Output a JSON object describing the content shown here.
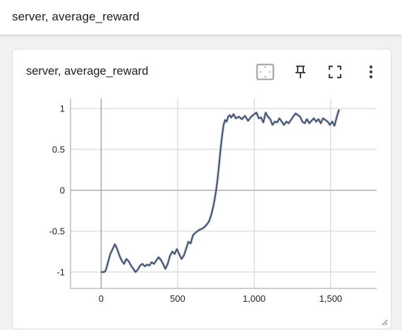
{
  "header": {
    "title": "server, average_reward"
  },
  "card": {
    "title": "server, average_reward",
    "toolbar": {
      "icons": [
        "fit-domain-icon",
        "pin-icon",
        "fullscreen-icon",
        "more-vert-icon"
      ]
    }
  },
  "colors": {
    "line": "#3b4a66",
    "band": "#9aa6bb",
    "grid": "#d0d0d0",
    "axis": "#9e9e9e"
  },
  "chart_data": {
    "type": "line",
    "title": "",
    "xlabel": "",
    "ylabel": "",
    "xlim": [
      -200,
      1800
    ],
    "ylim": [
      -1.2,
      1.12
    ],
    "xticks": [
      0,
      500,
      1000,
      1500
    ],
    "xtick_labels": [
      "0",
      "500",
      "1,000",
      "1,500"
    ],
    "yticks": [
      1,
      0.5,
      0,
      -0.5,
      -1
    ],
    "ytick_labels": [
      "1",
      "0.5",
      "0",
      "-0.5",
      "-1"
    ],
    "grid": true,
    "series": [
      {
        "x": [
          0,
          20,
          30,
          45,
          60,
          75,
          90,
          105,
          120,
          135,
          150,
          165,
          180,
          195,
          210,
          225,
          240,
          255,
          270,
          285,
          300,
          315,
          330,
          345,
          360,
          375,
          390,
          405,
          420,
          435,
          450,
          465,
          480,
          495,
          510,
          525,
          540,
          555,
          570,
          585,
          600,
          615,
          630,
          645,
          660,
          675,
          690,
          705,
          720,
          735,
          750,
          760,
          770,
          780,
          790,
          800,
          810,
          820,
          830,
          840,
          850,
          865,
          880,
          900,
          920,
          940,
          960,
          980,
          1000,
          1015,
          1030,
          1045,
          1060,
          1075,
          1090,
          1105,
          1120,
          1135,
          1150,
          1165,
          1180,
          1195,
          1210,
          1225,
          1240,
          1255,
          1270,
          1285,
          1300,
          1315,
          1330,
          1345,
          1360,
          1375,
          1390,
          1405,
          1420,
          1435,
          1450,
          1465,
          1480,
          1495,
          1510,
          1525,
          1540,
          1555
        ],
        "y": [
          -1.0,
          -1.0,
          -0.98,
          -0.88,
          -0.78,
          -0.72,
          -0.66,
          -0.72,
          -0.8,
          -0.86,
          -0.9,
          -0.84,
          -0.87,
          -0.92,
          -0.96,
          -1.0,
          -0.97,
          -0.92,
          -0.9,
          -0.93,
          -0.91,
          -0.92,
          -0.88,
          -0.9,
          -0.86,
          -0.82,
          -0.85,
          -0.9,
          -0.96,
          -0.9,
          -0.8,
          -0.75,
          -0.78,
          -0.72,
          -0.78,
          -0.84,
          -0.8,
          -0.72,
          -0.63,
          -0.65,
          -0.55,
          -0.52,
          -0.5,
          -0.48,
          -0.47,
          -0.45,
          -0.42,
          -0.38,
          -0.3,
          -0.18,
          -0.02,
          0.12,
          0.3,
          0.5,
          0.66,
          0.8,
          0.86,
          0.84,
          0.9,
          0.92,
          0.89,
          0.93,
          0.88,
          0.9,
          0.87,
          0.91,
          0.85,
          0.9,
          0.93,
          0.95,
          0.88,
          0.89,
          0.83,
          0.95,
          0.9,
          0.87,
          0.8,
          0.84,
          0.83,
          0.88,
          0.84,
          0.8,
          0.84,
          0.82,
          0.86,
          0.9,
          0.94,
          0.92,
          0.9,
          0.84,
          0.82,
          0.87,
          0.82,
          0.85,
          0.88,
          0.84,
          0.87,
          0.82,
          0.88,
          0.86,
          0.84,
          0.8,
          0.84,
          0.79,
          0.9,
          0.99
        ]
      }
    ]
  }
}
